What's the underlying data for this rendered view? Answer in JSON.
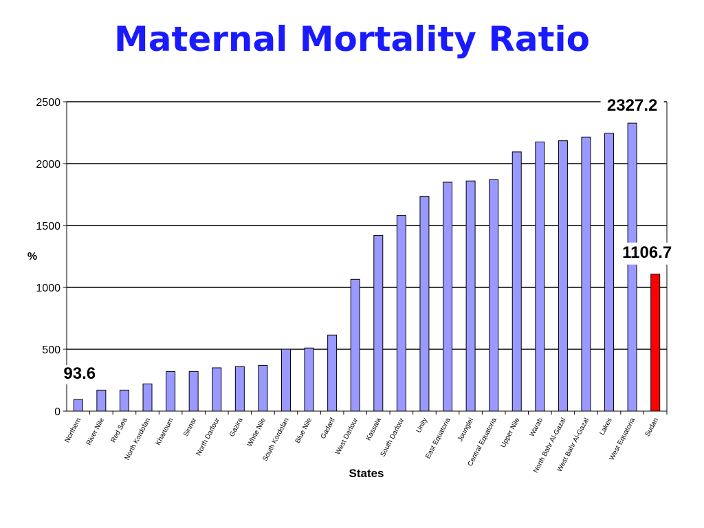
{
  "chart_data": {
    "type": "bar",
    "title": "Maternal Mortality Ratio",
    "xlabel": "States",
    "ylabel": "%",
    "ylim": [
      0,
      2500
    ],
    "yticks": [
      0,
      500,
      1000,
      1500,
      2000,
      2500
    ],
    "grid": true,
    "categories": [
      "Northern",
      "River Nile",
      "Red Sea",
      "North Kordofan",
      "Khartoum",
      "Sinnar",
      "North Darfour",
      "Gazira",
      "White Nile",
      "South Kordofan",
      "Blue Nile",
      "Gadarif",
      "West Darfour",
      "Kassala",
      "South Darfour",
      "Unity",
      "East Equatoria",
      "Jounglei",
      "Central Equatoria",
      "Upper Nile",
      "Warab",
      "North Bahr Al-Gazal",
      "West Bahr Al-Gazal",
      "Lakes",
      "West Equatoria",
      "Sudan"
    ],
    "values": [
      93.6,
      170,
      170,
      220,
      320,
      320,
      350,
      360,
      370,
      500,
      510,
      615,
      1065,
      1420,
      1580,
      1735,
      1850,
      1860,
      1870,
      2095,
      2175,
      2185,
      2215,
      2245,
      2327.2,
      1106.7
    ],
    "colors": {
      "states": "#9999ff",
      "sudan": "#ff0000",
      "text": "#000000",
      "title": "#1a1aff"
    },
    "annotations": [
      {
        "text": "93.6",
        "category": "Northern"
      },
      {
        "text": "2327.2",
        "category": "West Equatoria"
      },
      {
        "text": "1106.7",
        "category": "Sudan"
      }
    ]
  }
}
